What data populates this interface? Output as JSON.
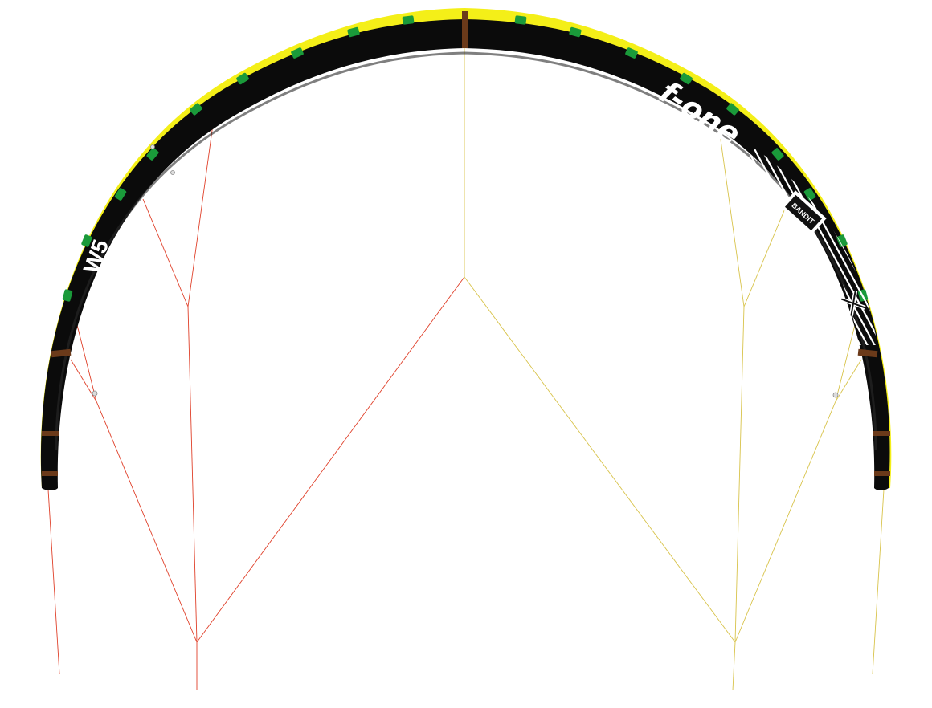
{
  "image": {
    "subject": "kite",
    "colors": {
      "background": "#ffffff",
      "leading_edge": "#0b0b0b",
      "canopy_trailing_edge": "#f4ef18",
      "battens": "#1a9a3a",
      "reinforcements": "#6b3a1a",
      "bridle_left": "#e0402a",
      "bridle_right": "#d8c34a",
      "graphic_white": "#ffffff",
      "graphic_grey": "#bfbfbf"
    }
  },
  "graphics": {
    "brand_logo": "f-one",
    "model_badge": "BANDIT",
    "wind_badge": "W5"
  }
}
